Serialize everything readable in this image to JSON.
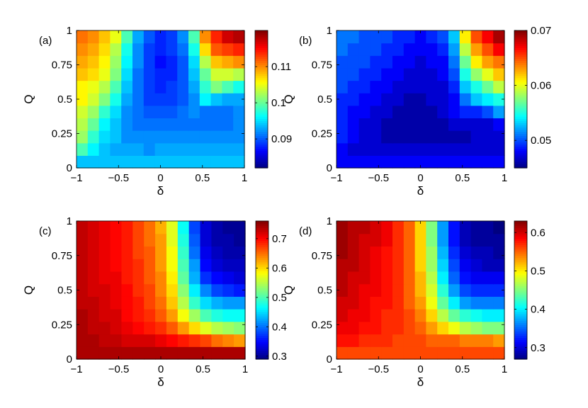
{
  "chart_data": [
    {
      "type": "heatmap",
      "panel_label": "(a)",
      "xlabel": "δ",
      "ylabel": "Q",
      "xlim": [
        -1,
        1
      ],
      "ylim": [
        0,
        1
      ],
      "x_ticks": [
        "−1",
        "−0.5",
        "0",
        "0.5",
        "1"
      ],
      "y_ticks": [
        "0",
        "0.25",
        "0.5",
        "0.75",
        "1"
      ],
      "clim": [
        0.082,
        0.12
      ],
      "colorbar_ticks": [
        {
          "value": 0.09,
          "label": "0.09"
        },
        {
          "value": 0.1,
          "label": "0.1"
        },
        {
          "value": 0.11,
          "label": "0.11"
        }
      ],
      "grid_shape": [
        11,
        15
      ],
      "values_bottom_to_top": [
        [
          0.094,
          0.094,
          0.094,
          0.094,
          0.094,
          0.094,
          0.094,
          0.094,
          0.094,
          0.094,
          0.094,
          0.094,
          0.094,
          0.094,
          0.094
        ],
        [
          0.099,
          0.096,
          0.094,
          0.093,
          0.093,
          0.093,
          0.092,
          0.093,
          0.093,
          0.093,
          0.093,
          0.093,
          0.093,
          0.093,
          0.093
        ],
        [
          0.102,
          0.098,
          0.095,
          0.094,
          0.092,
          0.092,
          0.092,
          0.092,
          0.092,
          0.092,
          0.092,
          0.092,
          0.092,
          0.092,
          0.092
        ],
        [
          0.103,
          0.1,
          0.096,
          0.094,
          0.092,
          0.091,
          0.091,
          0.091,
          0.091,
          0.091,
          0.091,
          0.091,
          0.091,
          0.091,
          0.092
        ],
        [
          0.104,
          0.102,
          0.098,
          0.095,
          0.092,
          0.091,
          0.09,
          0.09,
          0.09,
          0.091,
          0.092,
          0.091,
          0.091,
          0.091,
          0.092
        ],
        [
          0.106,
          0.104,
          0.101,
          0.097,
          0.093,
          0.091,
          0.089,
          0.089,
          0.089,
          0.09,
          0.092,
          0.096,
          0.094,
          0.093,
          0.093
        ],
        [
          0.106,
          0.105,
          0.103,
          0.099,
          0.094,
          0.091,
          0.089,
          0.088,
          0.089,
          0.09,
          0.093,
          0.098,
          0.101,
          0.099,
          0.097
        ],
        [
          0.108,
          0.107,
          0.105,
          0.101,
          0.095,
          0.091,
          0.089,
          0.088,
          0.088,
          0.09,
          0.094,
          0.1,
          0.104,
          0.104,
          0.103
        ],
        [
          0.109,
          0.108,
          0.106,
          0.102,
          0.096,
          0.092,
          0.089,
          0.087,
          0.088,
          0.09,
          0.095,
          0.103,
          0.108,
          0.109,
          0.11
        ],
        [
          0.11,
          0.109,
          0.107,
          0.103,
          0.097,
          0.092,
          0.089,
          0.088,
          0.089,
          0.091,
          0.097,
          0.107,
          0.112,
          0.113,
          0.114
        ],
        [
          0.111,
          0.11,
          0.108,
          0.105,
          0.099,
          0.093,
          0.09,
          0.088,
          0.089,
          0.092,
          0.099,
          0.11,
          0.114,
          0.117,
          0.118
        ]
      ]
    },
    {
      "type": "heatmap",
      "panel_label": "(b)",
      "xlabel": "δ",
      "ylabel": "Q",
      "xlim": [
        -1,
        1
      ],
      "ylim": [
        0,
        1
      ],
      "x_ticks": [
        "−1",
        "−0.5",
        "0",
        "0.5",
        "1"
      ],
      "y_ticks": [
        "0",
        "0.25",
        "0.5",
        "0.75",
        "1"
      ],
      "clim": [
        0.045,
        0.07
      ],
      "colorbar_ticks": [
        {
          "value": 0.05,
          "label": "0.05"
        },
        {
          "value": 0.06,
          "label": "0.06"
        },
        {
          "value": 0.07,
          "label": "0.07"
        }
      ],
      "grid_shape": [
        11,
        15
      ],
      "values_bottom_to_top": [
        [
          0.048,
          0.048,
          0.048,
          0.048,
          0.048,
          0.048,
          0.048,
          0.048,
          0.048,
          0.048,
          0.048,
          0.048,
          0.048,
          0.048,
          0.048
        ],
        [
          0.048,
          0.047,
          0.047,
          0.047,
          0.047,
          0.047,
          0.047,
          0.047,
          0.047,
          0.047,
          0.047,
          0.047,
          0.047,
          0.047,
          0.047
        ],
        [
          0.049,
          0.048,
          0.047,
          0.047,
          0.046,
          0.046,
          0.046,
          0.046,
          0.046,
          0.046,
          0.046,
          0.046,
          0.047,
          0.047,
          0.047
        ],
        [
          0.049,
          0.048,
          0.047,
          0.047,
          0.046,
          0.046,
          0.046,
          0.046,
          0.046,
          0.046,
          0.047,
          0.047,
          0.047,
          0.047,
          0.048
        ],
        [
          0.049,
          0.048,
          0.048,
          0.047,
          0.047,
          0.046,
          0.046,
          0.046,
          0.046,
          0.047,
          0.048,
          0.049,
          0.049,
          0.05,
          0.052
        ],
        [
          0.049,
          0.049,
          0.048,
          0.048,
          0.047,
          0.047,
          0.046,
          0.046,
          0.047,
          0.047,
          0.048,
          0.051,
          0.053,
          0.054,
          0.055
        ],
        [
          0.05,
          0.049,
          0.049,
          0.048,
          0.048,
          0.047,
          0.047,
          0.047,
          0.047,
          0.047,
          0.049,
          0.053,
          0.055,
          0.057,
          0.059
        ],
        [
          0.05,
          0.05,
          0.049,
          0.049,
          0.048,
          0.048,
          0.047,
          0.047,
          0.047,
          0.048,
          0.05,
          0.055,
          0.058,
          0.06,
          0.062
        ],
        [
          0.05,
          0.05,
          0.05,
          0.049,
          0.049,
          0.048,
          0.048,
          0.047,
          0.048,
          0.048,
          0.051,
          0.057,
          0.061,
          0.063,
          0.064
        ],
        [
          0.051,
          0.05,
          0.05,
          0.05,
          0.049,
          0.049,
          0.048,
          0.048,
          0.048,
          0.049,
          0.052,
          0.059,
          0.063,
          0.065,
          0.067
        ],
        [
          0.051,
          0.051,
          0.05,
          0.05,
          0.05,
          0.049,
          0.049,
          0.048,
          0.049,
          0.05,
          0.053,
          0.061,
          0.065,
          0.067,
          0.069
        ]
      ]
    },
    {
      "type": "heatmap",
      "panel_label": "(c)",
      "xlabel": "δ",
      "ylabel": "Q",
      "xlim": [
        -1,
        1
      ],
      "ylim": [
        0,
        1
      ],
      "x_ticks": [
        "−1",
        "−0.5",
        "0",
        "0.5",
        "1"
      ],
      "y_ticks": [
        "0",
        "0.25",
        "0.5",
        "0.75",
        "1"
      ],
      "clim": [
        0.29,
        0.76
      ],
      "colorbar_ticks": [
        {
          "value": 0.3,
          "label": "0.3"
        },
        {
          "value": 0.4,
          "label": "0.4"
        },
        {
          "value": 0.5,
          "label": "0.5"
        },
        {
          "value": 0.6,
          "label": "0.6"
        },
        {
          "value": 0.7,
          "label": "0.7"
        }
      ],
      "grid_shape": [
        11,
        15
      ],
      "values_bottom_to_top": [
        [
          0.74,
          0.74,
          0.74,
          0.74,
          0.74,
          0.74,
          0.74,
          0.74,
          0.74,
          0.74,
          0.74,
          0.74,
          0.74,
          0.74,
          0.74
        ],
        [
          0.74,
          0.74,
          0.73,
          0.73,
          0.72,
          0.72,
          0.72,
          0.71,
          0.7,
          0.69,
          0.68,
          0.67,
          0.65,
          0.64,
          0.63
        ],
        [
          0.74,
          0.73,
          0.73,
          0.72,
          0.71,
          0.7,
          0.69,
          0.68,
          0.66,
          0.63,
          0.6,
          0.57,
          0.55,
          0.54,
          0.53
        ],
        [
          0.74,
          0.73,
          0.72,
          0.72,
          0.7,
          0.69,
          0.68,
          0.66,
          0.63,
          0.58,
          0.54,
          0.5,
          0.48,
          0.47,
          0.47
        ],
        [
          0.73,
          0.73,
          0.72,
          0.71,
          0.7,
          0.69,
          0.67,
          0.65,
          0.61,
          0.55,
          0.49,
          0.45,
          0.43,
          0.42,
          0.42
        ],
        [
          0.73,
          0.72,
          0.72,
          0.71,
          0.7,
          0.68,
          0.67,
          0.64,
          0.6,
          0.53,
          0.46,
          0.41,
          0.38,
          0.37,
          0.36
        ],
        [
          0.73,
          0.72,
          0.71,
          0.71,
          0.69,
          0.68,
          0.66,
          0.64,
          0.59,
          0.51,
          0.43,
          0.37,
          0.35,
          0.34,
          0.33
        ],
        [
          0.73,
          0.72,
          0.71,
          0.7,
          0.69,
          0.68,
          0.66,
          0.63,
          0.58,
          0.5,
          0.42,
          0.35,
          0.33,
          0.32,
          0.32
        ],
        [
          0.73,
          0.72,
          0.71,
          0.7,
          0.69,
          0.67,
          0.66,
          0.63,
          0.58,
          0.49,
          0.4,
          0.34,
          0.32,
          0.31,
          0.31
        ],
        [
          0.73,
          0.72,
          0.71,
          0.7,
          0.69,
          0.67,
          0.65,
          0.63,
          0.57,
          0.48,
          0.39,
          0.33,
          0.31,
          0.31,
          0.3
        ],
        [
          0.73,
          0.72,
          0.71,
          0.7,
          0.69,
          0.67,
          0.65,
          0.62,
          0.57,
          0.47,
          0.38,
          0.33,
          0.31,
          0.3,
          0.3
        ]
      ]
    },
    {
      "type": "heatmap",
      "panel_label": "(d)",
      "xlabel": "δ",
      "ylabel": "Q",
      "xlim": [
        -1,
        1
      ],
      "ylim": [
        0,
        1
      ],
      "x_ticks": [
        "−1",
        "−0.5",
        "0",
        "0.5",
        "1"
      ],
      "y_ticks": [
        "0",
        "0.25",
        "0.5",
        "0.75",
        "1"
      ],
      "clim": [
        0.27,
        0.63
      ],
      "colorbar_ticks": [
        {
          "value": 0.3,
          "label": "0.3"
        },
        {
          "value": 0.4,
          "label": "0.4"
        },
        {
          "value": 0.5,
          "label": "0.5"
        },
        {
          "value": 0.6,
          "label": "0.6"
        }
      ],
      "grid_shape": [
        11,
        15
      ],
      "values_bottom_to_top": [
        [
          0.56,
          0.56,
          0.56,
          0.56,
          0.56,
          0.56,
          0.56,
          0.56,
          0.56,
          0.56,
          0.56,
          0.56,
          0.56,
          0.56,
          0.56
        ],
        [
          0.58,
          0.58,
          0.57,
          0.57,
          0.57,
          0.56,
          0.56,
          0.56,
          0.55,
          0.55,
          0.55,
          0.54,
          0.54,
          0.54,
          0.53
        ],
        [
          0.59,
          0.59,
          0.58,
          0.58,
          0.57,
          0.57,
          0.56,
          0.55,
          0.53,
          0.51,
          0.49,
          0.47,
          0.46,
          0.45,
          0.45
        ],
        [
          0.6,
          0.59,
          0.59,
          0.58,
          0.57,
          0.57,
          0.56,
          0.54,
          0.51,
          0.47,
          0.44,
          0.42,
          0.41,
          0.4,
          0.4
        ],
        [
          0.6,
          0.6,
          0.59,
          0.58,
          0.58,
          0.57,
          0.55,
          0.53,
          0.49,
          0.44,
          0.4,
          0.37,
          0.36,
          0.36,
          0.36
        ],
        [
          0.61,
          0.6,
          0.59,
          0.59,
          0.58,
          0.57,
          0.55,
          0.52,
          0.48,
          0.42,
          0.37,
          0.34,
          0.33,
          0.33,
          0.33
        ],
        [
          0.61,
          0.6,
          0.6,
          0.59,
          0.58,
          0.57,
          0.55,
          0.52,
          0.47,
          0.4,
          0.35,
          0.32,
          0.31,
          0.31,
          0.31
        ],
        [
          0.61,
          0.61,
          0.6,
          0.59,
          0.58,
          0.57,
          0.55,
          0.51,
          0.46,
          0.39,
          0.34,
          0.31,
          0.3,
          0.29,
          0.29
        ],
        [
          0.62,
          0.61,
          0.6,
          0.59,
          0.58,
          0.57,
          0.55,
          0.51,
          0.46,
          0.38,
          0.33,
          0.3,
          0.29,
          0.29,
          0.28
        ],
        [
          0.62,
          0.61,
          0.6,
          0.6,
          0.59,
          0.57,
          0.55,
          0.51,
          0.45,
          0.37,
          0.32,
          0.29,
          0.28,
          0.28,
          0.28
        ],
        [
          0.62,
          0.61,
          0.61,
          0.6,
          0.59,
          0.57,
          0.55,
          0.51,
          0.45,
          0.37,
          0.32,
          0.29,
          0.28,
          0.28,
          0.27
        ]
      ]
    }
  ]
}
